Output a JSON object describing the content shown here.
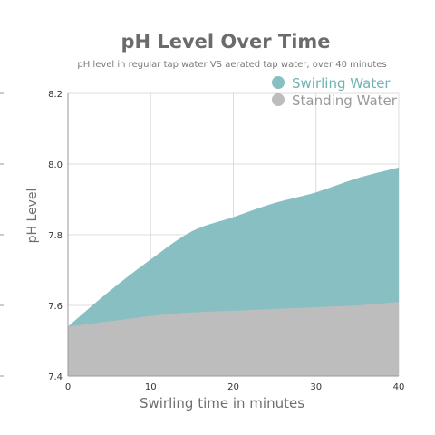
{
  "chart_data": {
    "type": "area",
    "title": "pH Level Over Time",
    "subtitle": "pH level in regular tap water VS aerated tap water, over 40 minutes",
    "xlabel": "Swirling time in minutes",
    "ylabel": "pH Level",
    "xlim": [
      0,
      40
    ],
    "ylim": [
      7.4,
      8.2
    ],
    "x_ticks": [
      "0",
      "10",
      "20",
      "30",
      "40"
    ],
    "y_ticks": [
      "7.4",
      "7.6",
      "7.8",
      "8.0",
      "8.2"
    ],
    "grid": true,
    "legend_position": "top-right",
    "x": [
      0,
      5,
      10,
      15,
      20,
      25,
      30,
      35,
      40
    ],
    "series": [
      {
        "name": "Swirling Water",
        "color": "#88bfc2",
        "values": [
          7.54,
          7.64,
          7.73,
          7.81,
          7.85,
          7.89,
          7.92,
          7.96,
          7.99
        ]
      },
      {
        "name": "Standing Water",
        "color": "#bdbdbd",
        "values": [
          7.54,
          7.555,
          7.57,
          7.58,
          7.585,
          7.59,
          7.595,
          7.6,
          7.61
        ]
      }
    ]
  }
}
